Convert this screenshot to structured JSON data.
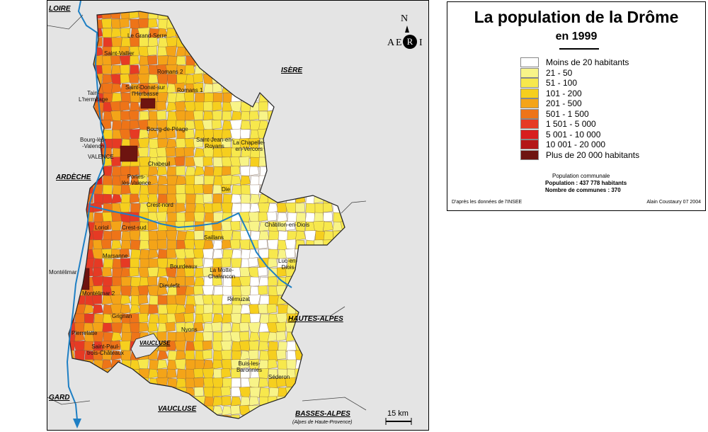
{
  "map": {
    "neighbors": {
      "loire": "LOIRE",
      "isere": "ISÈRE",
      "ardeche": "ARDÈCHE",
      "hautes_alpes": "HAUTES-ALPES",
      "vaucluse_enclave": "VAUCLUSE",
      "vaucluse": "VAUCLUSE",
      "gard": "GARD",
      "basses_alpes": "BASSES-ALPES",
      "basses_alpes_sub": "(Alpes de Haute-Provence)"
    },
    "towns": {
      "le_grand_serre": "Le Grand-Serre",
      "saint_vallier": "Saint-Vallier",
      "romans2": "Romans 2",
      "saint_donat": "Saint-Donat-sur\nl'Herbasse",
      "romans1": "Romans 1",
      "tain": "Tain-\nL'hermitage",
      "bourg_de_peage": "Bourg-de-Péage",
      "saint_jean": "Saint-Jean-en-\nRoyans",
      "la_chapelle": "La Chapelle-\nen-Vercors",
      "bourg_les_valence": "Bourg-lès-\n-Valence",
      "valence": "VALENCE",
      "chabeuil": "Chabeuil",
      "portes": "Portes-\nlès-Valence",
      "die": "Die",
      "crest_nord": "Crest-nord",
      "chatillon": "Châtillon-en-Diois",
      "loriol": "Loriol",
      "crest_sud": "Crest-sud",
      "saillans": "Saillans",
      "marsanne": "Marsanne",
      "luc": "Luc-en-\nDiois",
      "bourdeaux": "Bourdeaux",
      "la_motte": "La Motte-\nChalancon",
      "montelimar": "Montélimar",
      "montelimar2": "Montélimar 2",
      "dieulefit": "Dieulefit",
      "remuzat": "Rémuzat",
      "grignan": "Grignan",
      "nyons": "Nyons",
      "pierrelatte": "Pierrelatte",
      "saint_paul": "Saint-Paul-\ntrois-Châteaux",
      "buis": "Buis-les-\nBaronnies",
      "sederon": "Séderon"
    },
    "compass": {
      "north": "N",
      "left": "A",
      "center": "R",
      "right": "I",
      "e_letter": "E"
    },
    "scale": "15 km"
  },
  "legend": {
    "title": "La population de la Drôme",
    "subtitle": "en 1999",
    "classes": [
      {
        "label": "Moins de 20 habitants",
        "color": "#ffffff"
      },
      {
        "label": "21 - 50",
        "color": "#f8f488"
      },
      {
        "label": "51 - 100",
        "color": "#f7e84c"
      },
      {
        "label": "101 - 200",
        "color": "#f6cf1e"
      },
      {
        "label": "201 - 500",
        "color": "#f4a418"
      },
      {
        "label": "501 - 1 500",
        "color": "#ee7418"
      },
      {
        "label": "1 501 - 5 000",
        "color": "#e63a24"
      },
      {
        "label": "5 001 - 10 000",
        "color": "#d81e1e"
      },
      {
        "label": "10 001 - 20 000",
        "color": "#b41616"
      },
      {
        "label": "Plus de 20 000 habitants",
        "color": "#6e1410"
      }
    ],
    "population_title": "Population communale",
    "population_line": "Population : 437 778 habitants",
    "communes_line": "Nombre de communes : 370",
    "source": "D'après les données de l'INSEE",
    "author": "Alain Coustaury 07 2004"
  }
}
